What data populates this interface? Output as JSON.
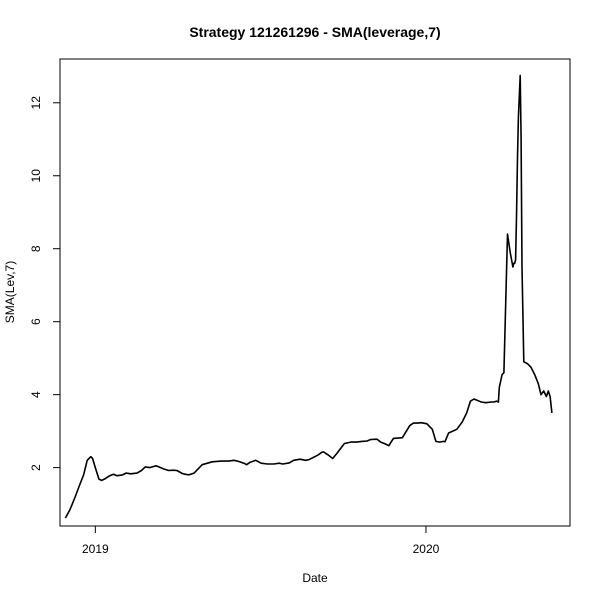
{
  "chart_data": {
    "type": "line",
    "title": "Strategy 121261296 - SMA(leverage,7)",
    "xlabel": "Date",
    "ylabel": "SMA(Lev,7)",
    "xlim": [
      "2018-11-23",
      "2020-06-08"
    ],
    "ylim": [
      0.4,
      13.2
    ],
    "x_ticks": [
      {
        "label": "2019",
        "date": "2019-01-01"
      },
      {
        "label": "2020",
        "date": "2020-01-01"
      }
    ],
    "y_ticks": [
      2,
      4,
      6,
      8,
      10,
      12
    ],
    "series": [
      {
        "x": [
          "2018-11-29",
          "2018-12-04",
          "2018-12-09",
          "2018-12-14",
          "2018-12-19",
          "2018-12-23",
          "2018-12-27",
          "2018-12-29",
          "2019-01-01",
          "2019-01-05",
          "2019-01-08",
          "2019-01-12",
          "2019-01-17",
          "2019-01-21",
          "2019-01-25",
          "2019-01-31",
          "2019-02-04",
          "2019-02-09",
          "2019-02-16",
          "2019-02-21",
          "2019-02-25",
          "2019-03-02",
          "2019-03-09",
          "2019-03-14",
          "2019-03-18",
          "2019-03-23",
          "2019-03-28",
          "2019-04-01",
          "2019-04-07",
          "2019-04-10",
          "2019-04-14",
          "2019-04-20",
          "2019-04-29",
          "2019-05-10",
          "2019-05-20",
          "2019-05-28",
          "2019-06-03",
          "2019-06-08",
          "2019-06-14",
          "2019-06-17",
          "2019-06-21",
          "2019-06-27",
          "2019-07-03",
          "2019-07-10",
          "2019-07-17",
          "2019-07-23",
          "2019-07-27",
          "2019-08-03",
          "2019-08-08",
          "2019-08-15",
          "2019-08-21",
          "2019-08-25",
          "2019-09-04",
          "2019-09-08",
          "2019-09-10",
          "2019-09-15",
          "2019-09-20",
          "2019-09-25",
          "2019-10-03",
          "2019-10-10",
          "2019-10-16",
          "2019-10-22",
          "2019-10-28",
          "2019-11-01",
          "2019-11-08",
          "2019-11-12",
          "2019-11-17",
          "2019-11-21",
          "2019-11-26",
          "2019-12-06",
          "2019-12-14",
          "2019-12-18",
          "2019-12-23",
          "2019-12-27",
          "2020-01-02",
          "2020-01-08",
          "2020-01-12",
          "2020-01-16",
          "2020-01-20",
          "2020-01-22",
          "2020-01-26",
          "2020-02-04",
          "2020-02-07",
          "2020-02-10",
          "2020-02-15",
          "2020-02-19",
          "2020-02-23",
          "2020-03-02",
          "2020-03-07",
          "2020-03-13",
          "2020-03-16",
          "2020-03-19",
          "2020-03-21",
          "2020-03-22",
          "2020-03-25",
          "2020-03-27",
          "2020-03-29",
          "2020-03-31",
          "2020-04-03",
          "2020-04-06",
          "2020-04-07",
          "2020-04-08",
          "2020-04-09",
          "2020-04-10",
          "2020-04-11",
          "2020-04-12",
          "2020-04-14",
          "2020-04-15",
          "2020-04-16",
          "2020-04-18",
          "2020-04-22",
          "2020-04-26",
          "2020-04-30",
          "2020-05-04",
          "2020-05-07",
          "2020-05-10",
          "2020-05-13",
          "2020-05-15",
          "2020-05-17",
          "2020-05-19"
        ],
        "y": [
          0.62,
          0.85,
          1.15,
          1.48,
          1.8,
          2.2,
          2.3,
          2.25,
          2.0,
          1.68,
          1.65,
          1.7,
          1.78,
          1.82,
          1.78,
          1.8,
          1.85,
          1.83,
          1.85,
          1.92,
          2.02,
          2.0,
          2.05,
          2.0,
          1.96,
          1.92,
          1.93,
          1.92,
          1.84,
          1.82,
          1.8,
          1.85,
          2.08,
          2.16,
          2.18,
          2.18,
          2.2,
          2.17,
          2.12,
          2.08,
          2.15,
          2.2,
          2.12,
          2.1,
          2.1,
          2.12,
          2.1,
          2.13,
          2.2,
          2.23,
          2.2,
          2.22,
          2.35,
          2.42,
          2.43,
          2.35,
          2.25,
          2.4,
          2.66,
          2.7,
          2.7,
          2.72,
          2.73,
          2.77,
          2.78,
          2.7,
          2.65,
          2.6,
          2.8,
          2.82,
          3.15,
          3.22,
          3.22,
          3.23,
          3.2,
          3.05,
          2.72,
          2.7,
          2.72,
          2.71,
          2.95,
          3.05,
          3.15,
          3.25,
          3.5,
          3.82,
          3.88,
          3.8,
          3.78,
          3.8,
          3.8,
          3.82,
          3.8,
          4.2,
          4.55,
          4.6,
          6.5,
          8.4,
          7.9,
          7.5,
          7.6,
          7.6,
          7.7,
          9.0,
          10.5,
          11.6,
          12.75,
          11.0,
          7.5,
          4.9,
          4.85,
          4.75,
          4.55,
          4.3,
          4.0,
          4.1,
          3.95,
          4.1,
          3.95,
          3.5
        ]
      }
    ]
  }
}
